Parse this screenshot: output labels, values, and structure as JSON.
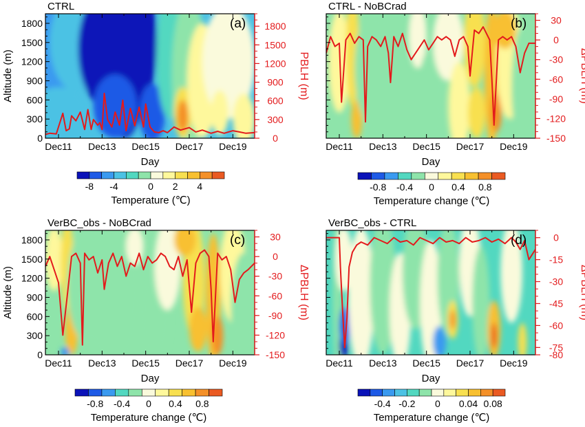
{
  "figure": {
    "x_axis_label": "Day",
    "x_ticks": [
      "Dec11",
      "Dec13",
      "Dec15",
      "Dec17",
      "Dec19"
    ],
    "left_axis_label": "Altitude (m)",
    "altitude_ticks": [
      0,
      300,
      600,
      900,
      1200,
      1500,
      1800
    ]
  },
  "chart_data": [
    {
      "type": "heatmap",
      "panel_label": "(a)",
      "title": "CTRL",
      "xlabel": "Day",
      "ylabel": "Altitude (m)",
      "ylabel_right": "PBLH (m)",
      "x_range": [
        "Dec10.4",
        "Dec20.0"
      ],
      "ylim": [
        0,
        1950
      ],
      "right_ylim": [
        0,
        2000
      ],
      "right_ticks": [
        0,
        300,
        600,
        900,
        1200,
        1500,
        1800
      ],
      "colorbar": {
        "label": "Temperature (℃)",
        "ticks": [
          -8,
          -4,
          0,
          2,
          4
        ],
        "tick_labels": [
          "-8",
          "-4",
          "0",
          "2",
          "4"
        ],
        "levels": [
          -10,
          -8,
          -6,
          -4,
          -2,
          -1,
          0,
          1,
          2,
          3,
          4,
          5,
          6
        ],
        "colors": [
          "#0a12b8",
          "#1e5ae6",
          "#3a9af0",
          "#4cc2e4",
          "#52d8c0",
          "#8ee4aa",
          "#fafadc",
          "#fef89c",
          "#f8e050",
          "#f8c030",
          "#f49028",
          "#ea5a22"
        ]
      },
      "series": [
        {
          "name": "PBLH",
          "color": "#e31a1c",
          "x": [
            10.4,
            10.6,
            10.9,
            11.2,
            11.35,
            11.5,
            11.6,
            11.8,
            12.0,
            12.2,
            12.35,
            12.5,
            12.6,
            12.8,
            12.9,
            13.0,
            13.1,
            13.25,
            13.45,
            13.6,
            13.8,
            13.95,
            14.1,
            14.3,
            14.5,
            14.7,
            14.9,
            15.0,
            15.2,
            15.4,
            15.6,
            15.8,
            16.0,
            16.3,
            16.6,
            17.0,
            17.3,
            17.6,
            18.0,
            18.3,
            18.6,
            19.0,
            19.3,
            19.6,
            20.0
          ],
          "y": [
            60,
            80,
            70,
            400,
            120,
            150,
            360,
            280,
            420,
            140,
            460,
            140,
            300,
            210,
            250,
            140,
            720,
            300,
            180,
            420,
            210,
            610,
            120,
            480,
            200,
            500,
            180,
            550,
            180,
            100,
            90,
            120,
            90,
            180,
            130,
            170,
            100,
            130,
            80,
            110,
            80,
            120,
            100,
            80,
            90
          ]
        }
      ]
    },
    {
      "type": "heatmap",
      "panel_label": "(b)",
      "title": "CTRL - NoBCrad",
      "xlabel": "Day",
      "ylabel": "",
      "ylabel_right": "ΔPBLH (m)",
      "x_range": [
        "Dec10.4",
        "Dec20.0"
      ],
      "ylim": [
        0,
        1950
      ],
      "right_ylim": [
        -150,
        40
      ],
      "right_ticks": [
        -150,
        -120,
        -90,
        -60,
        -30,
        0,
        30
      ],
      "colorbar": {
        "label": "Temperature change (℃)",
        "ticks": [
          -0.8,
          -0.4,
          0,
          0.4,
          0.8
        ],
        "tick_labels": [
          "-0.8",
          "-0.4",
          "0",
          "0.4",
          "0.8"
        ],
        "levels": [
          -1.1,
          -0.9,
          -0.7,
          -0.5,
          -0.3,
          -0.1,
          0.1,
          0.3,
          0.5,
          0.7,
          0.9,
          1.1
        ],
        "colors": [
          "#0a12b8",
          "#1e5ae6",
          "#3a9af0",
          "#52d8c0",
          "#8ee4aa",
          "#fafadc",
          "#fef89c",
          "#f8e050",
          "#f8c030",
          "#f49028",
          "#ea5a22"
        ]
      },
      "series": [
        {
          "name": "ΔPBLH",
          "color": "#e31a1c",
          "x": [
            10.4,
            10.6,
            10.8,
            11.0,
            11.1,
            11.3,
            11.5,
            11.7,
            11.9,
            12.1,
            12.2,
            12.3,
            12.5,
            12.7,
            12.9,
            13.1,
            13.25,
            13.35,
            13.5,
            13.7,
            13.9,
            14.1,
            14.3,
            14.5,
            14.7,
            14.9,
            15.1,
            15.3,
            15.5,
            15.7,
            15.9,
            16.1,
            16.3,
            16.5,
            16.7,
            16.9,
            17.0,
            17.2,
            17.4,
            17.6,
            17.9,
            18.0,
            18.1,
            18.3,
            18.5,
            18.7,
            18.9,
            19.1,
            19.3,
            19.5,
            19.7,
            20.0
          ],
          "y": [
            -20,
            5,
            -10,
            -5,
            -95,
            0,
            10,
            -5,
            5,
            0,
            -125,
            -10,
            5,
            0,
            -10,
            5,
            -20,
            -65,
            5,
            -10,
            10,
            -15,
            -30,
            -20,
            -10,
            0,
            -15,
            -5,
            5,
            0,
            5,
            0,
            -25,
            0,
            5,
            -10,
            -55,
            15,
            10,
            20,
            0,
            -60,
            -130,
            0,
            5,
            0,
            5,
            -10,
            -50,
            -20,
            -5,
            -5
          ]
        }
      ]
    },
    {
      "type": "heatmap",
      "panel_label": "(c)",
      "title": "VerBC_obs - NoBCrad",
      "xlabel": "Day",
      "ylabel": "Altitude (m)",
      "ylabel_right": "ΔPBLH (m)",
      "x_range": [
        "Dec10.4",
        "Dec20.0"
      ],
      "ylim": [
        0,
        1950
      ],
      "right_ylim": [
        -150,
        40
      ],
      "right_ticks": [
        -150,
        -120,
        -90,
        -60,
        -30,
        0,
        30
      ],
      "colorbar": {
        "label": "Temperature change (℃)",
        "ticks": [
          -0.8,
          -0.4,
          0,
          0.4,
          0.8
        ],
        "tick_labels": [
          "-0.8",
          "-0.4",
          "0",
          "0.4",
          "0.8"
        ],
        "levels": [
          -1.1,
          -0.9,
          -0.7,
          -0.5,
          -0.3,
          -0.1,
          0.1,
          0.3,
          0.5,
          0.7,
          0.9,
          1.1
        ],
        "colors": [
          "#0a12b8",
          "#1e5ae6",
          "#3a9af0",
          "#52d8c0",
          "#8ee4aa",
          "#fafadc",
          "#fef89c",
          "#f8e050",
          "#f8c030",
          "#f49028",
          "#ea5a22"
        ]
      },
      "series": [
        {
          "name": "ΔPBLH",
          "color": "#e31a1c",
          "x": [
            10.4,
            10.6,
            10.8,
            11.0,
            11.1,
            11.2,
            11.4,
            11.6,
            11.8,
            12.0,
            12.1,
            12.2,
            12.4,
            12.6,
            12.8,
            13.0,
            13.1,
            13.3,
            13.5,
            13.7,
            13.9,
            14.1,
            14.3,
            14.5,
            14.7,
            14.9,
            15.1,
            15.3,
            15.5,
            15.7,
            15.9,
            16.1,
            16.3,
            16.5,
            16.7,
            16.9,
            17.1,
            17.3,
            17.5,
            17.7,
            17.9,
            18.0,
            18.1,
            18.3,
            18.5,
            18.7,
            18.9,
            19.1,
            19.3,
            19.5,
            19.7,
            20.0
          ],
          "y": [
            -15,
            0,
            -20,
            -40,
            -80,
            -120,
            -60,
            0,
            5,
            -10,
            -135,
            5,
            -5,
            0,
            -25,
            -5,
            -50,
            -10,
            5,
            -15,
            0,
            -30,
            -10,
            -15,
            5,
            -20,
            0,
            -10,
            -5,
            5,
            0,
            -15,
            -20,
            0,
            -30,
            -5,
            -85,
            -10,
            5,
            10,
            0,
            -50,
            -130,
            5,
            -5,
            0,
            -20,
            -70,
            -35,
            -25,
            -20,
            -10
          ]
        }
      ]
    },
    {
      "type": "heatmap",
      "panel_label": "(d)",
      "title": "VerBC_obs - CTRL",
      "xlabel": "Day",
      "ylabel": "",
      "ylabel_right": "ΔPBLH (m)",
      "x_range": [
        "Dec10.4",
        "Dec20.0"
      ],
      "ylim": [
        0,
        1950
      ],
      "right_ylim": [
        -80,
        5
      ],
      "right_ticks": [
        -80,
        -75,
        -60,
        -45,
        -30,
        -15,
        0
      ],
      "colorbar": {
        "label": "Temperature change (℃)",
        "ticks": [
          -0.4,
          -0.2,
          0,
          0.04,
          0.08
        ],
        "tick_labels": [
          "-0.4",
          "-0.2",
          "0",
          "0.04",
          "0.08"
        ],
        "levels": [
          -0.6,
          -0.5,
          -0.4,
          -0.3,
          -0.2,
          -0.1,
          -0.01,
          0.01,
          0.02,
          0.04,
          0.06,
          0.08,
          0.1
        ],
        "colors": [
          "#0a12b8",
          "#1e5ae6",
          "#3a9af0",
          "#4cc2e4",
          "#52d8c0",
          "#8ee4aa",
          "#fafadc",
          "#fef89c",
          "#f8e050",
          "#f8c030",
          "#f49028",
          "#ea5a22"
        ]
      },
      "series": [
        {
          "name": "ΔPBLH",
          "color": "#e31a1c",
          "x": [
            10.4,
            10.7,
            11.0,
            11.05,
            11.15,
            11.25,
            11.35,
            11.45,
            11.6,
            11.8,
            12.0,
            12.3,
            12.6,
            12.9,
            13.2,
            13.5,
            13.8,
            14.1,
            14.4,
            14.7,
            15.0,
            15.3,
            15.6,
            15.9,
            16.2,
            16.5,
            16.8,
            17.1,
            17.4,
            17.7,
            18.0,
            18.3,
            18.6,
            18.9,
            19.1,
            19.3,
            19.5,
            19.7,
            20.0
          ],
          "y": [
            0,
            0,
            0,
            -20,
            -50,
            -75,
            -55,
            -20,
            -10,
            -5,
            -3,
            -5,
            0,
            -2,
            -4,
            0,
            -3,
            -2,
            -5,
            0,
            -2,
            -4,
            0,
            -3,
            -2,
            -4,
            0,
            -3,
            -2,
            0,
            -3,
            -1,
            -4,
            0,
            -3,
            -8,
            -2,
            -15,
            -8
          ]
        }
      ]
    }
  ]
}
